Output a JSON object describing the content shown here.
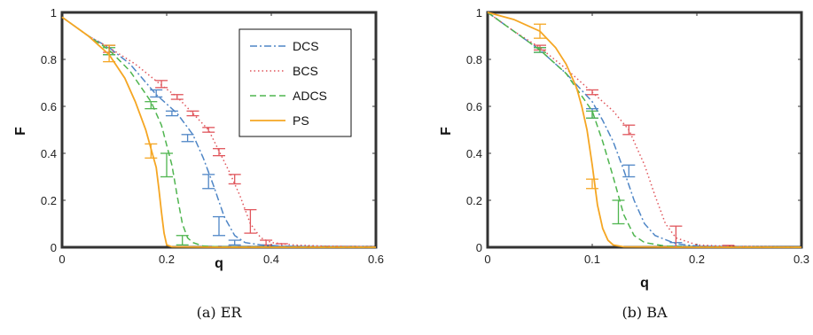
{
  "chart_data": [
    {
      "type": "line",
      "caption": "(a) ER",
      "xlabel": "q",
      "ylabel": "F",
      "xlim": [
        0,
        0.6
      ],
      "ylim": [
        0,
        1
      ],
      "xticks": [
        "0",
        "0.2",
        "0.4",
        "0.6"
      ],
      "yticks": [
        "0",
        "0.2",
        "0.4",
        "0.6",
        "0.8",
        "1"
      ],
      "grid": false,
      "legend": "top-right",
      "series": [
        {
          "name": "DCS",
          "color": "#4f86c6",
          "style": "dashdot",
          "x": [
            0,
            0.05,
            0.09,
            0.13,
            0.18,
            0.22,
            0.25,
            0.27,
            0.29,
            0.31,
            0.33,
            0.35,
            0.38,
            0.42,
            0.5,
            0.6
          ],
          "y": [
            0.98,
            0.9,
            0.85,
            0.78,
            0.65,
            0.57,
            0.48,
            0.38,
            0.26,
            0.13,
            0.05,
            0.02,
            0.01,
            0.005,
            0.002,
            0.001
          ],
          "errorbars": [
            {
              "x": 0.09,
              "lo": 0.82,
              "hi": 0.86
            },
            {
              "x": 0.18,
              "lo": 0.64,
              "hi": 0.67
            },
            {
              "x": 0.21,
              "lo": 0.56,
              "hi": 0.58
            },
            {
              "x": 0.24,
              "lo": 0.45,
              "hi": 0.48
            },
            {
              "x": 0.28,
              "lo": 0.25,
              "hi": 0.31
            },
            {
              "x": 0.3,
              "lo": 0.05,
              "hi": 0.13
            },
            {
              "x": 0.33,
              "lo": 0.01,
              "hi": 0.03
            }
          ]
        },
        {
          "name": "BCS",
          "color": "#e0555b",
          "style": "dotted",
          "x": [
            0,
            0.05,
            0.09,
            0.14,
            0.19,
            0.22,
            0.25,
            0.28,
            0.3,
            0.32,
            0.34,
            0.36,
            0.38,
            0.4,
            0.44,
            0.5,
            0.6
          ],
          "y": [
            0.98,
            0.9,
            0.85,
            0.78,
            0.69,
            0.64,
            0.57,
            0.5,
            0.41,
            0.32,
            0.22,
            0.1,
            0.04,
            0.02,
            0.01,
            0.005,
            0.002
          ],
          "errorbars": [
            {
              "x": 0.09,
              "lo": 0.83,
              "hi": 0.86
            },
            {
              "x": 0.19,
              "lo": 0.68,
              "hi": 0.71
            },
            {
              "x": 0.22,
              "lo": 0.63,
              "hi": 0.65
            },
            {
              "x": 0.25,
              "lo": 0.56,
              "hi": 0.58
            },
            {
              "x": 0.28,
              "lo": 0.49,
              "hi": 0.51
            },
            {
              "x": 0.3,
              "lo": 0.39,
              "hi": 0.42
            },
            {
              "x": 0.33,
              "lo": 0.27,
              "hi": 0.31
            },
            {
              "x": 0.36,
              "lo": 0.06,
              "hi": 0.16
            },
            {
              "x": 0.39,
              "lo": 0.01,
              "hi": 0.03
            },
            {
              "x": 0.42,
              "lo": 0.0,
              "hi": 0.015
            }
          ]
        },
        {
          "name": "ADCS",
          "color": "#4fb54f",
          "style": "dashed",
          "x": [
            0,
            0.05,
            0.09,
            0.13,
            0.17,
            0.19,
            0.21,
            0.22,
            0.23,
            0.24,
            0.25,
            0.27,
            0.3,
            0.4,
            0.5,
            0.6
          ],
          "y": [
            0.98,
            0.9,
            0.84,
            0.75,
            0.62,
            0.52,
            0.35,
            0.22,
            0.1,
            0.04,
            0.02,
            0.005,
            0.002,
            0.001,
            0.0,
            0.0
          ],
          "errorbars": [
            {
              "x": 0.09,
              "lo": 0.82,
              "hi": 0.85
            },
            {
              "x": 0.17,
              "lo": 0.59,
              "hi": 0.62
            },
            {
              "x": 0.2,
              "lo": 0.3,
              "hi": 0.4
            },
            {
              "x": 0.23,
              "lo": 0.01,
              "hi": 0.05
            }
          ]
        },
        {
          "name": "PS",
          "color": "#f5a623",
          "style": "solid",
          "x": [
            0,
            0.05,
            0.09,
            0.12,
            0.14,
            0.16,
            0.17,
            0.18,
            0.185,
            0.19,
            0.195,
            0.2,
            0.21,
            0.3,
            0.4,
            0.5,
            0.6
          ],
          "y": [
            0.98,
            0.9,
            0.82,
            0.72,
            0.62,
            0.5,
            0.42,
            0.34,
            0.25,
            0.15,
            0.06,
            0.01,
            0.002,
            0.0,
            0.0,
            0.0,
            0.0
          ],
          "errorbars": [
            {
              "x": 0.09,
              "lo": 0.79,
              "hi": 0.86
            },
            {
              "x": 0.17,
              "lo": 0.38,
              "hi": 0.44
            }
          ]
        }
      ]
    },
    {
      "type": "line",
      "caption": "(b) BA",
      "xlabel": "q",
      "ylabel": "F",
      "xlim": [
        0,
        0.3
      ],
      "ylim": [
        0,
        1
      ],
      "xticks": [
        "0",
        "0.1",
        "0.2",
        "0.3"
      ],
      "yticks": [
        "0",
        "0.2",
        "0.4",
        "0.6",
        "0.8",
        "1"
      ],
      "grid": false,
      "series": [
        {
          "name": "DCS",
          "color": "#4f86c6",
          "style": "dashdot",
          "x": [
            0,
            0.025,
            0.05,
            0.075,
            0.1,
            0.11,
            0.12,
            0.13,
            0.14,
            0.15,
            0.16,
            0.18,
            0.2,
            0.25,
            0.3
          ],
          "y": [
            1.0,
            0.92,
            0.84,
            0.74,
            0.62,
            0.54,
            0.45,
            0.33,
            0.2,
            0.1,
            0.05,
            0.015,
            0.005,
            0.001,
            0.0
          ],
          "errorbars": [
            {
              "x": 0.05,
              "lo": 0.83,
              "hi": 0.85
            },
            {
              "x": 0.1,
              "lo": 0.55,
              "hi": 0.59
            },
            {
              "x": 0.135,
              "lo": 0.3,
              "hi": 0.35
            },
            {
              "x": 0.18,
              "lo": 0.005,
              "hi": 0.02
            }
          ]
        },
        {
          "name": "BCS",
          "color": "#e0555b",
          "style": "dotted",
          "x": [
            0,
            0.025,
            0.05,
            0.075,
            0.1,
            0.12,
            0.135,
            0.15,
            0.16,
            0.17,
            0.18,
            0.2,
            0.23,
            0.3
          ],
          "y": [
            1.0,
            0.92,
            0.85,
            0.76,
            0.66,
            0.58,
            0.5,
            0.35,
            0.22,
            0.1,
            0.04,
            0.01,
            0.004,
            0.0
          ],
          "errorbars": [
            {
              "x": 0.05,
              "lo": 0.84,
              "hi": 0.86
            },
            {
              "x": 0.1,
              "lo": 0.65,
              "hi": 0.67
            },
            {
              "x": 0.135,
              "lo": 0.48,
              "hi": 0.52
            },
            {
              "x": 0.18,
              "lo": 0.0,
              "hi": 0.09
            },
            {
              "x": 0.23,
              "lo": 0.0,
              "hi": 0.008
            }
          ]
        },
        {
          "name": "ADCS",
          "color": "#4fb54f",
          "style": "dashed",
          "x": [
            0,
            0.025,
            0.05,
            0.075,
            0.1,
            0.11,
            0.12,
            0.13,
            0.14,
            0.15,
            0.17,
            0.2,
            0.3
          ],
          "y": [
            1.0,
            0.92,
            0.84,
            0.74,
            0.58,
            0.45,
            0.3,
            0.14,
            0.05,
            0.02,
            0.005,
            0.001,
            0.0
          ],
          "errorbars": [
            {
              "x": 0.05,
              "lo": 0.83,
              "hi": 0.85
            },
            {
              "x": 0.1,
              "lo": 0.55,
              "hi": 0.58
            },
            {
              "x": 0.125,
              "lo": 0.1,
              "hi": 0.2
            }
          ]
        },
        {
          "name": "PS",
          "color": "#f5a623",
          "style": "solid",
          "x": [
            0,
            0.025,
            0.05,
            0.065,
            0.075,
            0.085,
            0.09,
            0.095,
            0.1,
            0.105,
            0.11,
            0.115,
            0.12,
            0.13,
            0.2,
            0.3
          ],
          "y": [
            1.0,
            0.97,
            0.92,
            0.85,
            0.78,
            0.68,
            0.6,
            0.5,
            0.35,
            0.18,
            0.08,
            0.03,
            0.01,
            0.002,
            0.0,
            0.0
          ],
          "errorbars": [
            {
              "x": 0.05,
              "lo": 0.89,
              "hi": 0.95
            },
            {
              "x": 0.1,
              "lo": 0.25,
              "hi": 0.29
            }
          ]
        }
      ]
    }
  ]
}
